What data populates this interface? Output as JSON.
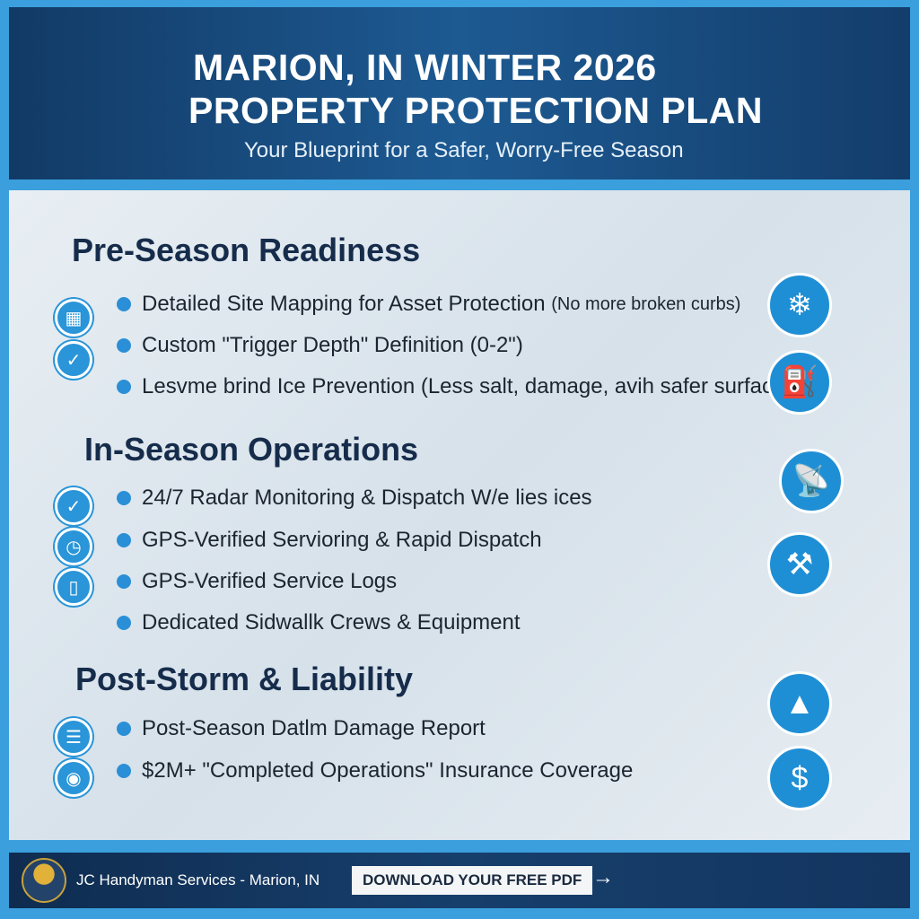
{
  "header": {
    "title_line1": "MARION, IN WINTER 2026",
    "title_line2": "PROPERTY PROTECTION PLAN",
    "subtitle": "Your Blueprint for a Safer, Worry-Free Season"
  },
  "sections": [
    {
      "heading": "Pre-Season Readiness",
      "items": [
        {
          "text": "Detailed Site Mapping for Asset Protection",
          "note": "(No more broken curbs)"
        },
        {
          "text": "Custom \"Trigger Depth\" Definition (0-2\")"
        },
        {
          "text": "Lesvme brind Ice Prevention (Less salt, damage, avih safer surfaces"
        }
      ]
    },
    {
      "heading": "In-Season Operations",
      "items": [
        {
          "text": "24/7 Radar Monitoring & Dispatch W/e lies ices"
        },
        {
          "text": "GPS-Verified Servioring & Rapid Dispatch"
        },
        {
          "text": "GPS-Verified Service Logs"
        },
        {
          "text": "Dedicated Sidwallk Crews & Equipment"
        }
      ]
    },
    {
      "heading": "Post-Storm & Liability",
      "items": [
        {
          "text": "Post-Season Datlm Damage Report"
        },
        {
          "text": "$2M+ \"Completed Operations\" Insurance Coverage"
        }
      ]
    }
  ],
  "icons": {
    "left": [
      "map-icon",
      "check-icon",
      "badge-check-icon",
      "clock-icon",
      "phone-location-icon",
      "clipboard-icon",
      "camera-icon"
    ],
    "right": [
      "ruler-snowflake-icon",
      "sprayer-icon",
      "satellite-dish-icon",
      "shoveling-worker-icon",
      "salt-shaker-icon",
      "shield-dollar-icon"
    ]
  },
  "footer": {
    "brand": "JC Handyman Services - Marion, IN",
    "cta": "DOWNLOAD YOUR FREE PDF",
    "arrow": "→"
  },
  "colors": {
    "navy": "#123a66",
    "accent": "#2a95d8",
    "text": "#162c4b"
  }
}
